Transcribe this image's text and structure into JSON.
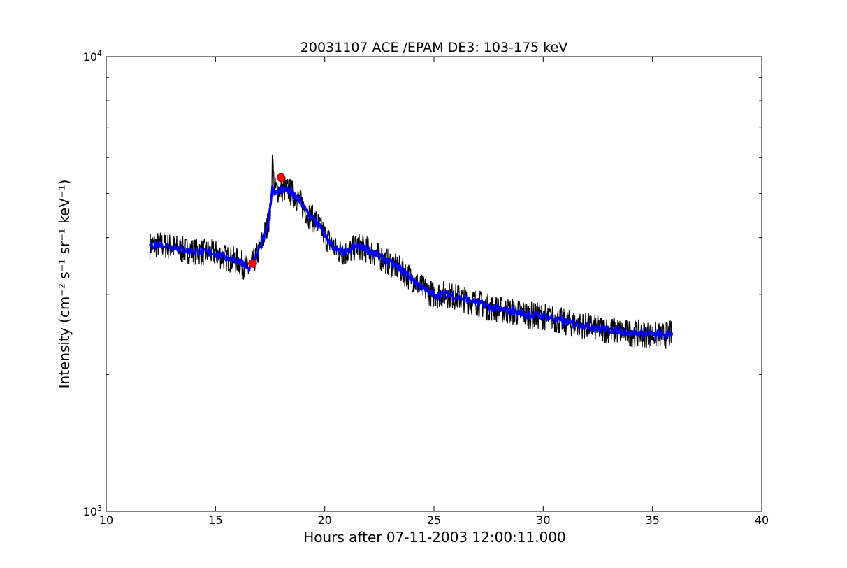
{
  "chart_data": {
    "type": "line",
    "title": "20031107 ACE /EPAM DE3: 103-175 keV",
    "xlabel": "Hours after 07-11-2003 12:00:11.000",
    "ylabel": "Intensity (cm⁻² s⁻¹ sr⁻¹ keV⁻¹)",
    "xlim": [
      10,
      40
    ],
    "ylim": [
      1000,
      10000
    ],
    "yscale": "log",
    "grid": false,
    "x_ticks": [
      "10",
      "15",
      "20",
      "25",
      "30",
      "35",
      "40"
    ],
    "y_ticks": [
      {
        "base": "10",
        "exp": "3"
      },
      {
        "base": "10",
        "exp": "4"
      }
    ],
    "colors": {
      "raw": "#000000",
      "smoothed": "#0000ff",
      "markers": "#ff0000"
    },
    "series": [
      {
        "style": "raw",
        "x": [
          12.0,
          12.5,
          13.0,
          13.5,
          14.0,
          14.5,
          15.0,
          15.5,
          16.0,
          16.3,
          16.5,
          16.7,
          17.0,
          17.2,
          17.4,
          17.55,
          17.6,
          17.7,
          17.9,
          18.2,
          18.5,
          18.8,
          19.0,
          19.3,
          19.6,
          20.0,
          20.5,
          21.0,
          21.5,
          22.0,
          22.5,
          23.0,
          23.5,
          24.0,
          24.5,
          25.0,
          25.5,
          26.0,
          26.5,
          27.0,
          27.5,
          28.0,
          28.5,
          29.0,
          29.5,
          30.0,
          30.5,
          31.0,
          31.5,
          32.0,
          32.5,
          33.0,
          33.5,
          34.0,
          34.5,
          35.0,
          35.5,
          35.9
        ],
        "y": [
          3850,
          3870,
          3820,
          3760,
          3740,
          3720,
          3700,
          3620,
          3560,
          3480,
          3400,
          3500,
          3750,
          4000,
          4300,
          4700,
          6000,
          5100,
          5100,
          5120,
          5020,
          4850,
          4680,
          4480,
          4350,
          4050,
          3760,
          3700,
          3840,
          3760,
          3640,
          3520,
          3400,
          3250,
          3090,
          3000,
          3010,
          2970,
          2920,
          2880,
          2820,
          2780,
          2760,
          2730,
          2700,
          2690,
          2650,
          2610,
          2580,
          2560,
          2530,
          2510,
          2490,
          2470,
          2460,
          2450,
          2440,
          2460
        ]
      },
      {
        "style": "smoothed",
        "x": [
          12.0,
          12.5,
          13.0,
          13.5,
          14.0,
          14.5,
          15.0,
          15.5,
          16.0,
          16.3,
          16.5,
          16.7,
          17.0,
          17.2,
          17.4,
          17.6,
          17.7,
          17.9,
          18.2,
          18.5,
          18.8,
          19.0,
          19.3,
          19.6,
          20.0,
          20.5,
          21.0,
          21.5,
          22.0,
          22.5,
          23.0,
          23.5,
          24.0,
          24.5,
          25.0,
          25.5,
          26.0,
          26.5,
          27.0,
          27.5,
          28.0,
          28.5,
          29.0,
          29.5,
          30.0,
          30.5,
          31.0,
          31.5,
          32.0,
          32.5,
          33.0,
          33.5,
          34.0,
          34.5,
          35.0,
          35.5,
          35.9
        ],
        "y": [
          3850,
          3870,
          3820,
          3760,
          3740,
          3720,
          3700,
          3620,
          3560,
          3480,
          3400,
          3500,
          3750,
          4000,
          4300,
          5100,
          5000,
          5080,
          5100,
          5000,
          4850,
          4680,
          4480,
          4350,
          4050,
          3760,
          3700,
          3840,
          3760,
          3640,
          3520,
          3400,
          3250,
          3090,
          3000,
          3010,
          2970,
          2920,
          2880,
          2820,
          2780,
          2760,
          2730,
          2700,
          2690,
          2650,
          2610,
          2580,
          2560,
          2530,
          2510,
          2490,
          2470,
          2460,
          2450,
          2440,
          2460
        ]
      },
      {
        "style": "markers",
        "x": [
          16.7,
          18.0
        ],
        "y": [
          3510,
          5420
        ]
      }
    ]
  }
}
